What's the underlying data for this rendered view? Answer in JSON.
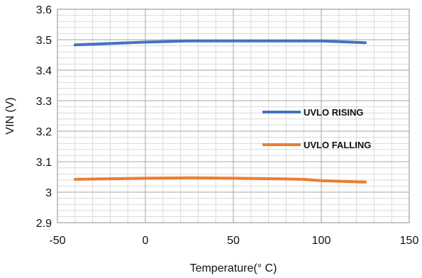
{
  "chart_data": {
    "type": "line",
    "title": "",
    "xlabel": "Temperature(° C)",
    "ylabel": "VIN (V)",
    "xlim": [
      -50,
      150
    ],
    "ylim": [
      2.9,
      3.6
    ],
    "x_ticks": [
      "-50",
      "0",
      "50",
      "100",
      "150"
    ],
    "y_ticks": [
      "2.9",
      "3",
      "3.1",
      "3.2",
      "3.3",
      "3.4",
      "3.5",
      "3.6"
    ],
    "grid": true,
    "legend": "right-center",
    "series": [
      {
        "name": "UVLO RISING",
        "color": "#4472C4",
        "x": [
          -40,
          0,
          25,
          50,
          75,
          100,
          125
        ],
        "y": [
          3.483,
          3.492,
          3.496,
          3.496,
          3.496,
          3.496,
          3.49
        ]
      },
      {
        "name": "UVLO FALLING",
        "color": "#ED7D31",
        "x": [
          -40,
          0,
          25,
          50,
          75,
          90,
          100,
          125
        ],
        "y": [
          3.042,
          3.046,
          3.047,
          3.046,
          3.044,
          3.042,
          3.038,
          3.033
        ]
      }
    ]
  }
}
